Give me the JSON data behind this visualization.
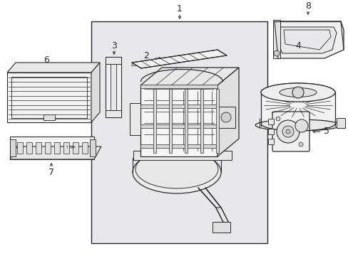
{
  "background_color": "#ffffff",
  "fig_width": 4.89,
  "fig_height": 3.6,
  "dpi": 100,
  "lc": "#2a2a2a",
  "box_fill": "#e8e8ea",
  "part_fill": "#f4f4f4",
  "shade_fill": "#d8d8d8"
}
